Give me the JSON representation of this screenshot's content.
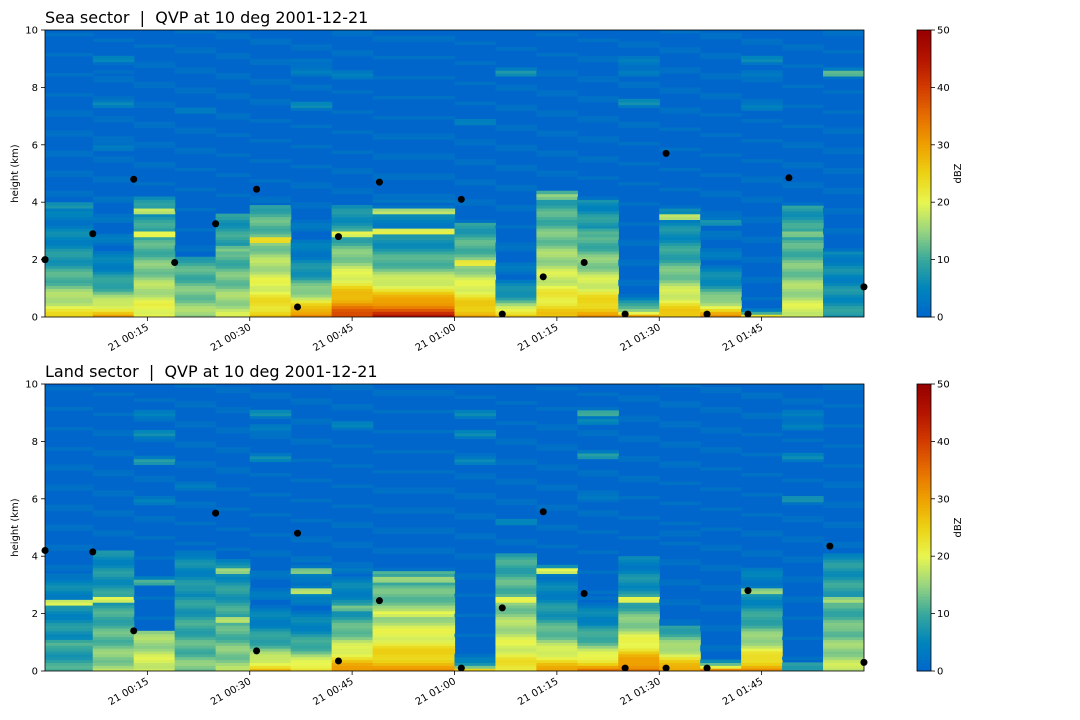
{
  "chart_data": [
    {
      "type": "heatmap",
      "title": "Sea sector  |  QVP at 10 deg 2001-12-21",
      "ylabel": "height (km)",
      "ylim": [
        0,
        10
      ],
      "yticks": [
        "0",
        "2",
        "4",
        "6",
        "8",
        "10"
      ],
      "xlim": [
        "2001-12-21 00:00",
        "2001-12-21 02:00"
      ],
      "xticks": [
        {
          "t": 15,
          "label": "21 00:15"
        },
        {
          "t": 30,
          "label": "21 00:30"
        },
        {
          "t": 45,
          "label": "21 00:45"
        },
        {
          "t": 60,
          "label": "21 01:00"
        },
        {
          "t": 75,
          "label": "21 01:15"
        },
        {
          "t": 90,
          "label": "21 01:30"
        },
        {
          "t": 105,
          "label": "21 01:45"
        }
      ],
      "colorbar": {
        "label": "dBZ",
        "range": [
          0,
          50
        ],
        "ticks": [
          "0",
          "10",
          "20",
          "30",
          "40",
          "50"
        ]
      },
      "grid": false,
      "columns": [
        {
          "t0": 0,
          "t1": 7,
          "top": 4.1,
          "base": 24,
          "decay": 1.8,
          "layers": [
            [
              3.9,
              10
            ]
          ]
        },
        {
          "t0": 7,
          "t1": 13,
          "top": 4.8,
          "base": 30,
          "decay": 1.0,
          "layers": [
            [
              5.9,
              6
            ],
            [
              7.4,
              6
            ],
            [
              8.6,
              4
            ],
            [
              9.0,
              4
            ]
          ]
        },
        {
          "t0": 13,
          "t1": 19,
          "top": 4.2,
          "base": 22,
          "decay": 3.5,
          "layers": [
            [
              2.9,
              26
            ],
            [
              3.7,
              22
            ]
          ]
        },
        {
          "t0": 19,
          "t1": 25,
          "top": 2.1,
          "base": 16,
          "decay": 4.0,
          "layers": [
            [
              7.2,
              2
            ]
          ]
        },
        {
          "t0": 25,
          "t1": 30,
          "top": 3.6,
          "base": 18,
          "decay": 4.0,
          "layers": [
            [
              2.4,
              16
            ]
          ]
        },
        {
          "t0": 30,
          "t1": 36,
          "top": 3.9,
          "base": 26,
          "decay": 4.0,
          "layers": [
            [
              2.7,
              26
            ]
          ]
        },
        {
          "t0": 36,
          "t1": 42,
          "top": 3.7,
          "base": 36,
          "decay": 1.0,
          "layers": [
            [
              7.4,
              5
            ],
            [
              8.5,
              5
            ],
            [
              9.0,
              4
            ]
          ]
        },
        {
          "t0": 42,
          "t1": 48,
          "top": 3.9,
          "base": 40,
          "decay": 2.0,
          "layers": [
            [
              2.9,
              22
            ],
            [
              8.4,
              4
            ]
          ]
        },
        {
          "t0": 48,
          "t1": 60,
          "top": 4.1,
          "base": 45,
          "decay": 1.4,
          "layers": [
            [
              3.0,
              24
            ],
            [
              3.7,
              20
            ]
          ]
        },
        {
          "t0": 60,
          "t1": 66,
          "top": 3.3,
          "base": 30,
          "decay": 2.5,
          "layers": [
            [
              1.9,
              24
            ],
            [
              6.8,
              3
            ]
          ]
        },
        {
          "t0": 66,
          "t1": 72,
          "top": 3.0,
          "base": 30,
          "decay": 0.6,
          "layers": [
            [
              8.5,
              8
            ]
          ]
        },
        {
          "t0": 72,
          "t1": 78,
          "top": 4.4,
          "base": 26,
          "decay": 4.0,
          "layers": [
            [
              4.2,
              16
            ],
            [
              2.6,
              12
            ]
          ]
        },
        {
          "t0": 78,
          "t1": 84,
          "top": 4.1,
          "base": 30,
          "decay": 2.5,
          "layers": [
            [
              3.0,
              14
            ]
          ]
        },
        {
          "t0": 84,
          "t1": 90,
          "top": 1.0,
          "base": 36,
          "decay": 0.3,
          "layers": [
            [
              7.5,
              6
            ],
            [
              8.5,
              6
            ],
            [
              9.0,
              5
            ]
          ]
        },
        {
          "t0": 90,
          "t1": 96,
          "top": 3.8,
          "base": 28,
          "decay": 2.0,
          "layers": [
            [
              3.5,
              22
            ]
          ]
        },
        {
          "t0": 96,
          "t1": 102,
          "top": 3.5,
          "base": 32,
          "decay": 0.8,
          "layers": [
            [
              3.3,
              10
            ]
          ]
        },
        {
          "t0": 102,
          "t1": 108,
          "top": 0.5,
          "base": 30,
          "decay": 0.15,
          "layers": [
            [
              7.3,
              6
            ],
            [
              8.5,
              5
            ],
            [
              9.0,
              5
            ]
          ]
        },
        {
          "t0": 108,
          "t1": 114,
          "top": 3.9,
          "base": 20,
          "decay": 4.0,
          "layers": [
            [
              2.9,
              18
            ]
          ]
        },
        {
          "t0": 114,
          "t1": 120,
          "top": 2.3,
          "base": 8,
          "decay": 4.0,
          "layers": [
            [
              8.5,
              12
            ]
          ]
        }
      ],
      "points": [
        {
          "t": 0,
          "h": 2.0
        },
        {
          "t": 7,
          "h": 2.9
        },
        {
          "t": 13,
          "h": 4.8
        },
        {
          "t": 19,
          "h": 1.9
        },
        {
          "t": 25,
          "h": 3.25
        },
        {
          "t": 31,
          "h": 4.45
        },
        {
          "t": 37,
          "h": 0.35
        },
        {
          "t": 43,
          "h": 2.8
        },
        {
          "t": 49,
          "h": 4.7
        },
        {
          "t": 61,
          "h": 4.1
        },
        {
          "t": 67,
          "h": 0.1
        },
        {
          "t": 73,
          "h": 1.4
        },
        {
          "t": 79,
          "h": 1.9
        },
        {
          "t": 85,
          "h": 0.1
        },
        {
          "t": 91,
          "h": 5.7
        },
        {
          "t": 97,
          "h": 0.1
        },
        {
          "t": 103,
          "h": 0.1
        },
        {
          "t": 109,
          "h": 4.85
        },
        {
          "t": 120,
          "h": 1.05
        }
      ]
    },
    {
      "type": "heatmap",
      "title": "Land sector  |  QVP at 10 deg 2001-12-21",
      "ylabel": "height (km)",
      "ylim": [
        0,
        10
      ],
      "yticks": [
        "0",
        "2",
        "4",
        "6",
        "8",
        "10"
      ],
      "xlim": [
        "2001-12-21 00:00",
        "2001-12-21 02:00"
      ],
      "xticks": [
        {
          "t": 15,
          "label": "21 00:15"
        },
        {
          "t": 30,
          "label": "21 00:30"
        },
        {
          "t": 45,
          "label": "21 00:45"
        },
        {
          "t": 60,
          "label": "21 01:00"
        },
        {
          "t": 75,
          "label": "21 01:15"
        },
        {
          "t": 90,
          "label": "21 01:30"
        },
        {
          "t": 105,
          "label": "21 01:45"
        }
      ],
      "colorbar": {
        "label": "dBZ",
        "range": [
          0,
          50
        ],
        "ticks": [
          "0",
          "10",
          "20",
          "30",
          "40",
          "50"
        ]
      },
      "grid": false,
      "columns": [
        {
          "t0": 0,
          "t1": 7,
          "top": 3.4,
          "base": 10,
          "decay": 4.0,
          "layers": [
            [
              2.4,
              22
            ],
            [
              1.0,
              12
            ]
          ]
        },
        {
          "t0": 7,
          "t1": 13,
          "top": 4.2,
          "base": 16,
          "decay": 4.0,
          "layers": [
            [
              2.5,
              24
            ]
          ]
        },
        {
          "t0": 13,
          "t1": 19,
          "top": 1.4,
          "base": 20,
          "decay": 4.0,
          "layers": [
            [
              3.1,
              12
            ],
            [
              5.9,
              4
            ],
            [
              7.3,
              8
            ],
            [
              8.3,
              8
            ],
            [
              9.0,
              6
            ]
          ]
        },
        {
          "t0": 19,
          "t1": 25,
          "top": 4.2,
          "base": 14,
          "decay": 4.0,
          "layers": [
            [
              2.8,
              10
            ],
            [
              6.4,
              3
            ]
          ]
        },
        {
          "t0": 25,
          "t1": 30,
          "top": 3.9,
          "base": 16,
          "decay": 4.0,
          "layers": [
            [
              1.8,
              22
            ],
            [
              3.5,
              16
            ]
          ]
        },
        {
          "t0": 30,
          "t1": 36,
          "top": 3.7,
          "base": 28,
          "decay": 1.0,
          "layers": [
            [
              7.4,
              6
            ],
            [
              8.5,
              6
            ],
            [
              9.0,
              6
            ]
          ]
        },
        {
          "t0": 36,
          "t1": 42,
          "top": 4.0,
          "base": 26,
          "decay": 1.0,
          "layers": [
            [
              2.8,
              22
            ],
            [
              3.5,
              18
            ]
          ]
        },
        {
          "t0": 42,
          "t1": 48,
          "top": 3.6,
          "base": 32,
          "decay": 1.5,
          "layers": [
            [
              2.2,
              14
            ],
            [
              8.6,
              4
            ]
          ]
        },
        {
          "t0": 48,
          "t1": 60,
          "top": 3.5,
          "base": 30,
          "decay": 3.0,
          "layers": [
            [
              2.0,
              22
            ],
            [
              3.2,
              20
            ]
          ]
        },
        {
          "t0": 60,
          "t1": 66,
          "top": 0.5,
          "base": 32,
          "decay": 0.2,
          "layers": [
            [
              7.3,
              6
            ],
            [
              8.3,
              6
            ],
            [
              9.0,
              6
            ]
          ]
        },
        {
          "t0": 66,
          "t1": 72,
          "top": 4.1,
          "base": 24,
          "decay": 4.0,
          "layers": [
            [
              2.5,
              22
            ],
            [
              5.2,
              4
            ]
          ]
        },
        {
          "t0": 72,
          "t1": 78,
          "top": 3.7,
          "base": 30,
          "decay": 1.5,
          "layers": [
            [
              3.5,
              22
            ]
          ]
        },
        {
          "t0": 78,
          "t1": 84,
          "top": 2.6,
          "base": 34,
          "decay": 1.0,
          "layers": [
            [
              7.5,
              8
            ],
            [
              8.7,
              8
            ],
            [
              9.0,
              10
            ],
            [
              6.0,
              4
            ]
          ]
        },
        {
          "t0": 84,
          "t1": 90,
          "top": 4.0,
          "base": 36,
          "decay": 1.8,
          "layers": [
            [
              2.5,
              22
            ]
          ]
        },
        {
          "t0": 90,
          "t1": 96,
          "top": 1.6,
          "base": 32,
          "decay": 1.2,
          "layers": [
            [
              4.8,
              4
            ]
          ]
        },
        {
          "t0": 96,
          "t1": 102,
          "top": 0.4,
          "base": 40,
          "decay": 0.2,
          "layers": []
        },
        {
          "t0": 102,
          "t1": 108,
          "top": 3.8,
          "base": 32,
          "decay": 1.5,
          "layers": [
            [
              2.8,
              16
            ]
          ]
        },
        {
          "t0": 108,
          "t1": 114,
          "top": 0.3,
          "base": 10,
          "decay": 4.0,
          "layers": [
            [
              6.0,
              6
            ],
            [
              7.5,
              6
            ],
            [
              8.5,
              6
            ],
            [
              9.0,
              6
            ]
          ]
        },
        {
          "t0": 114,
          "t1": 120,
          "top": 4.1,
          "base": 18,
          "decay": 4.0,
          "layers": [
            [
              2.5,
              18
            ],
            [
              1.4,
              16
            ]
          ]
        }
      ],
      "points": [
        {
          "t": 0,
          "h": 4.2
        },
        {
          "t": 7,
          "h": 4.15
        },
        {
          "t": 13,
          "h": 1.4
        },
        {
          "t": 25,
          "h": 5.5
        },
        {
          "t": 31,
          "h": 0.7
        },
        {
          "t": 37,
          "h": 4.8
        },
        {
          "t": 43,
          "h": 0.35
        },
        {
          "t": 49,
          "h": 2.45
        },
        {
          "t": 61,
          "h": 0.1
        },
        {
          "t": 67,
          "h": 2.2
        },
        {
          "t": 73,
          "h": 5.55
        },
        {
          "t": 79,
          "h": 2.7
        },
        {
          "t": 85,
          "h": 0.1
        },
        {
          "t": 91,
          "h": 0.1
        },
        {
          "t": 97,
          "h": 0.1
        },
        {
          "t": 103,
          "h": 2.8
        },
        {
          "t": 115,
          "h": 4.35
        },
        {
          "t": 120,
          "h": 0.3
        }
      ]
    }
  ]
}
